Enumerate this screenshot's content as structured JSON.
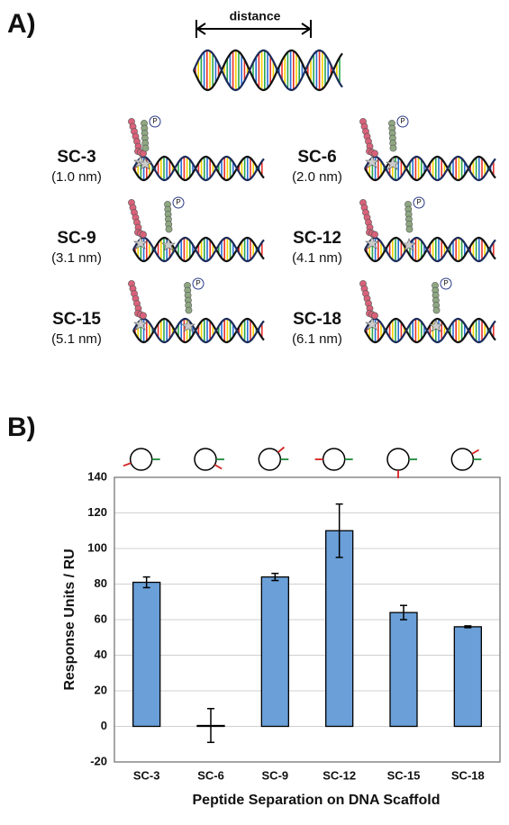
{
  "panel_a": {
    "label": "A)",
    "distance_label": "distance",
    "phospho_label": "P",
    "constructs": [
      {
        "name": "SC-3",
        "separation": "(1.0 nm)"
      },
      {
        "name": "SC-6",
        "separation": "(2.0 nm)"
      },
      {
        "name": "SC-9",
        "separation": "(3.1 nm)"
      },
      {
        "name": "SC-12",
        "separation": "(4.1 nm)"
      },
      {
        "name": "SC-15",
        "separation": "(5.1 nm)"
      },
      {
        "name": "SC-18",
        "separation": "(6.1 nm)"
      }
    ]
  },
  "chart_data": {
    "type": "bar",
    "panel_label": "B)",
    "x_label": "Peptide Separation on DNA Scaffold",
    "y_label": "Response Units / RU",
    "categories": [
      "SC-3",
      "SC-6",
      "SC-9",
      "SC-12",
      "SC-15",
      "SC-18"
    ],
    "values": [
      81,
      0.5,
      84,
      110,
      64,
      56
    ],
    "errors": [
      3,
      9.5,
      2,
      15,
      4,
      0.5
    ],
    "color": "#6a9fd8",
    "ylim": [
      -20,
      140
    ],
    "yticks": [
      -20,
      0,
      20,
      40,
      60,
      80,
      100,
      120,
      140
    ],
    "grid": true
  }
}
